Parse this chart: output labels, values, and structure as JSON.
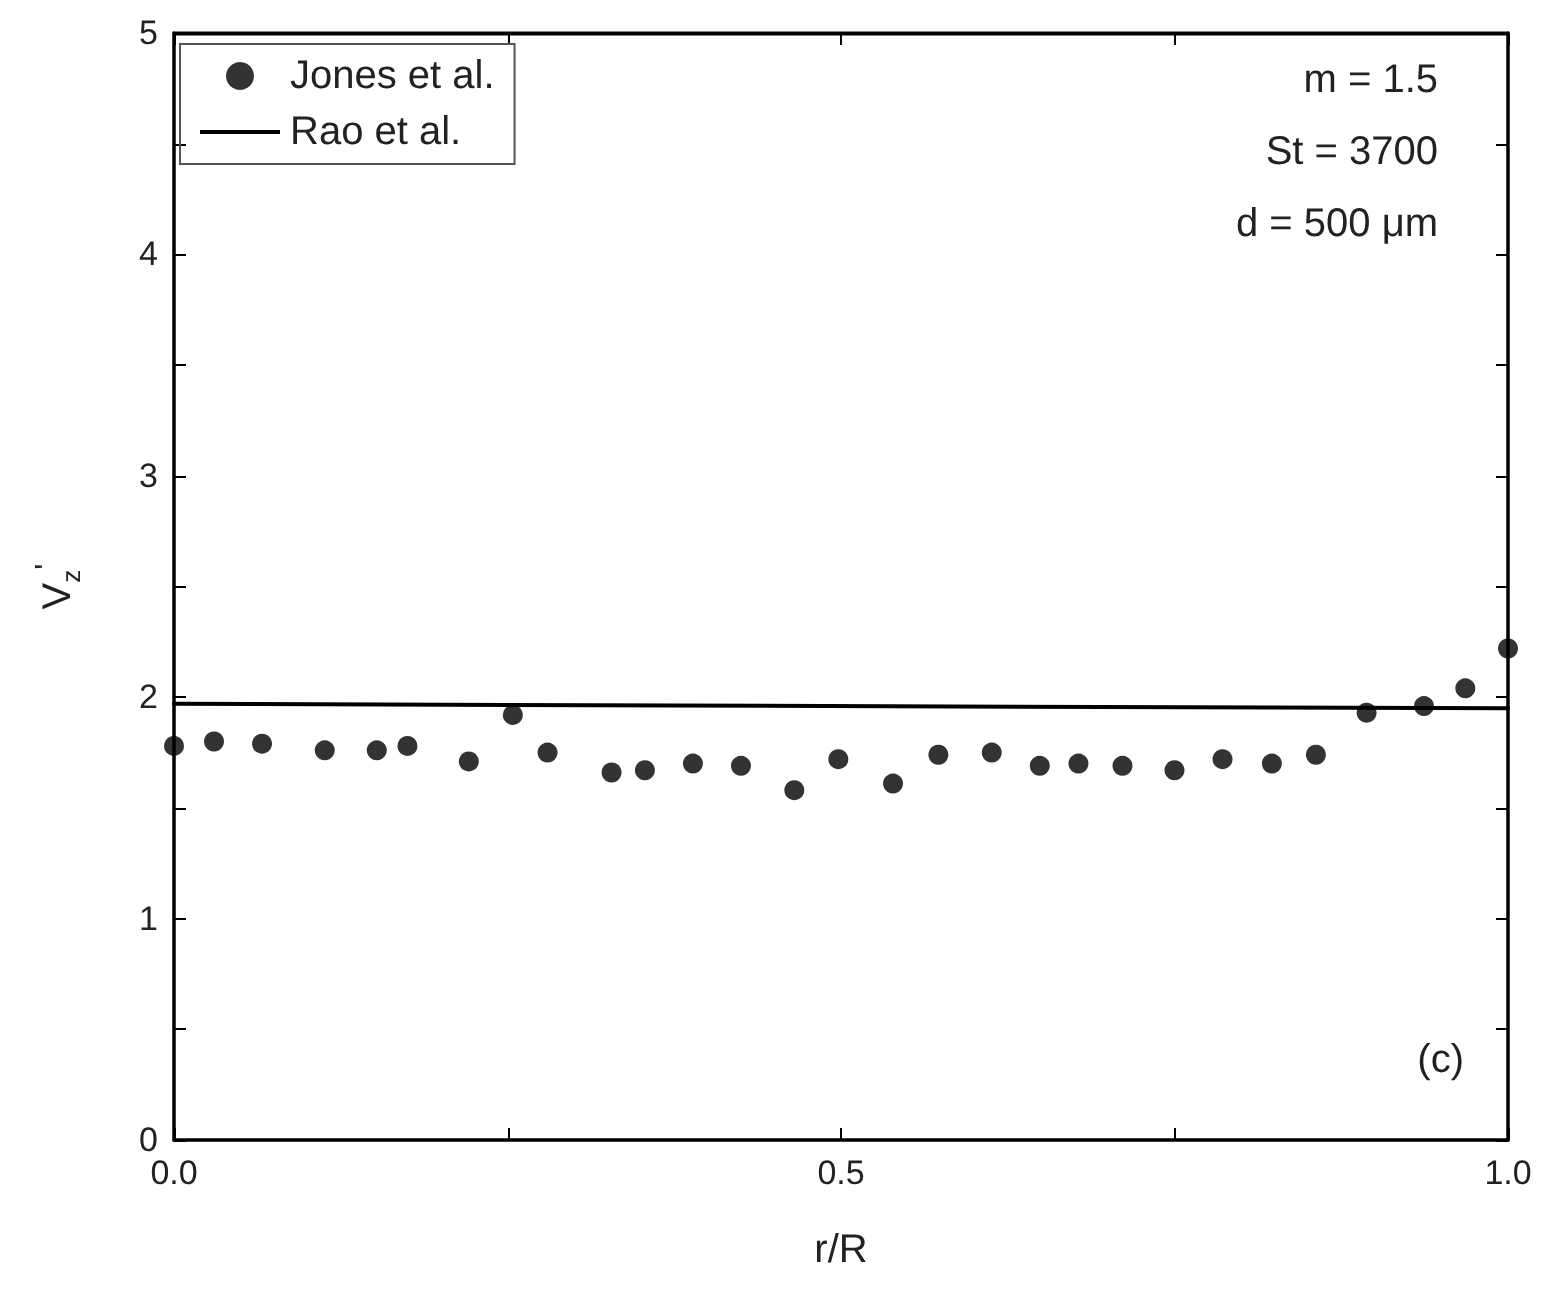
{
  "chart_data": {
    "type": "scatter",
    "xlabel": "r/R",
    "ylabel": "V$_{z}$$^{'}$",
    "xlim": [
      0,
      1
    ],
    "ylim": [
      0,
      5
    ],
    "xticks": [
      {
        "value": 0,
        "label": "0.0"
      },
      {
        "value": 0.25,
        "label": null
      },
      {
        "value": 0.5,
        "label": "0.5"
      },
      {
        "value": 0.75,
        "label": null
      },
      {
        "value": 1,
        "label": "1.0"
      }
    ],
    "yticks": [
      0,
      {
        "value": 0.5,
        "label": null
      },
      1,
      {
        "value": 1.5,
        "label": null
      },
      2,
      {
        "value": 2.5,
        "label": null
      },
      3,
      {
        "value": 3.5,
        "label": null
      },
      4,
      {
        "value": 4.5,
        "label": null
      },
      5
    ],
    "grid": false,
    "legend": "top left",
    "marker": "circle",
    "series": [
      {
        "name": "Jones et al.",
        "color": "#000000",
        "x": [
          0.0,
          0.03,
          0.066,
          0.113,
          0.152,
          0.175,
          0.221,
          0.254,
          0.28,
          0.328,
          0.353,
          0.389,
          0.425,
          0.465,
          0.498,
          0.539,
          0.573,
          0.613,
          0.649,
          0.678,
          0.711,
          0.75,
          0.786,
          0.823,
          0.856,
          0.894,
          0.937,
          0.968,
          1.0
        ],
        "values": [
          1.78,
          1.8,
          1.79,
          1.76,
          1.76,
          1.78,
          1.71,
          1.92,
          1.75,
          1.66,
          1.67,
          1.7,
          1.69,
          1.58,
          1.72,
          1.61,
          1.74,
          1.75,
          1.69,
          1.7,
          1.69,
          1.67,
          1.72,
          1.7,
          1.74,
          1.93,
          1.96,
          2.04,
          2.22
        ]
      },
      {
        "name": "Rao et al.",
        "type": "line",
        "color": "#000000",
        "line_style": "solid",
        "marker": "none",
        "x": [
          0,
          1
        ],
        "values": [
          1.97,
          1.95
        ]
      }
    ],
    "annotations": [
      "m = 1.5",
      "St = 3700",
      "d = 500 μm",
      "(c)"
    ]
  }
}
